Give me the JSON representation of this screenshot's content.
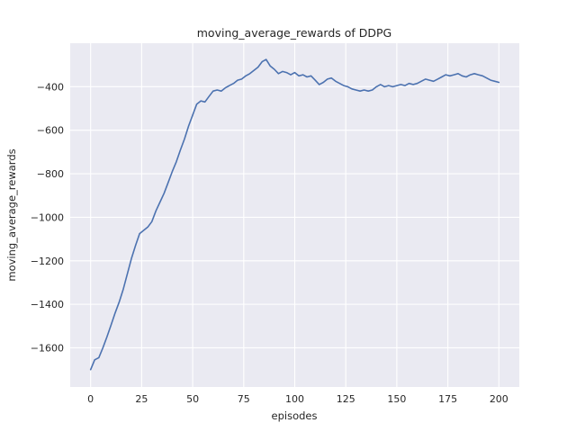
{
  "chart_data": {
    "type": "line",
    "title": "moving_average_rewards of DDPG",
    "xlabel": "episodes",
    "ylabel": "moving_average_rewards",
    "x": [
      0,
      2,
      4,
      6,
      8,
      10,
      12,
      14,
      16,
      18,
      20,
      22,
      24,
      26,
      28,
      30,
      32,
      34,
      36,
      38,
      40,
      42,
      44,
      46,
      48,
      50,
      52,
      54,
      56,
      58,
      60,
      62,
      64,
      66,
      68,
      70,
      72,
      74,
      76,
      78,
      80,
      82,
      84,
      86,
      88,
      90,
      92,
      94,
      96,
      98,
      100,
      102,
      104,
      106,
      108,
      110,
      112,
      114,
      116,
      118,
      120,
      122,
      124,
      126,
      128,
      130,
      132,
      134,
      136,
      138,
      140,
      142,
      144,
      146,
      148,
      150,
      152,
      154,
      156,
      158,
      160,
      162,
      164,
      166,
      168,
      170,
      172,
      174,
      176,
      178,
      180,
      182,
      184,
      186,
      188,
      190,
      192,
      194,
      196,
      198,
      200
    ],
    "y": [
      -1700,
      -1655,
      -1645,
      -1600,
      -1550,
      -1495,
      -1440,
      -1390,
      -1330,
      -1260,
      -1190,
      -1130,
      -1075,
      -1060,
      -1045,
      -1020,
      -970,
      -930,
      -890,
      -840,
      -790,
      -745,
      -690,
      -640,
      -580,
      -530,
      -480,
      -465,
      -470,
      -445,
      -420,
      -415,
      -420,
      -405,
      -395,
      -385,
      -370,
      -365,
      -350,
      -340,
      -325,
      -310,
      -285,
      -275,
      -305,
      -320,
      -340,
      -330,
      -335,
      -345,
      -335,
      -350,
      -345,
      -355,
      -350,
      -370,
      -390,
      -380,
      -365,
      -360,
      -375,
      -385,
      -395,
      -400,
      -410,
      -415,
      -420,
      -415,
      -420,
      -415,
      -400,
      -390,
      -400,
      -395,
      -400,
      -395,
      -390,
      -395,
      -385,
      -390,
      -385,
      -375,
      -365,
      -370,
      -375,
      -365,
      -355,
      -345,
      -350,
      -345,
      -340,
      -350,
      -355,
      -345,
      -340,
      -345,
      -350,
      -360,
      -370,
      -375,
      -380
    ],
    "xticks": [
      0,
      25,
      50,
      75,
      100,
      125,
      150,
      175,
      200
    ],
    "yticks": [
      -400,
      -600,
      -800,
      -1000,
      -1200,
      -1400,
      -1600
    ],
    "xlim": [
      -10,
      210
    ],
    "ylim": [
      -1780,
      -200
    ],
    "grid": true,
    "legend": "none",
    "line_color": "#4c72b0",
    "line_width": 1.6,
    "plot_bg": "#eaeaf2",
    "grid_color": "#ffffff",
    "fig_bg": "#ffffff",
    "tick_color": "#262626"
  }
}
